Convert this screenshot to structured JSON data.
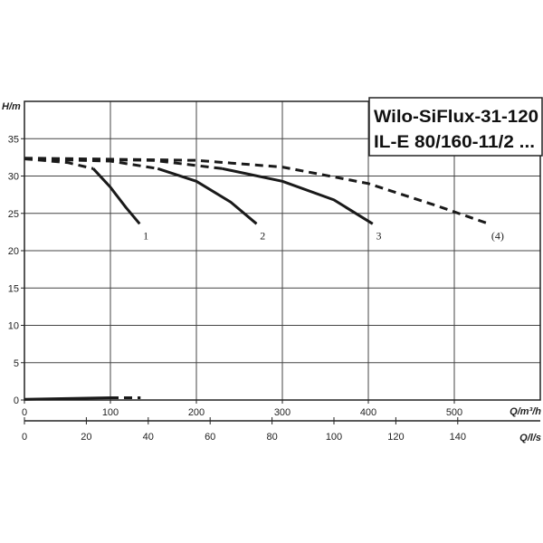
{
  "chart_data": {
    "type": "line",
    "title_lines": [
      "Wilo-SiFlux-31-120",
      "IL-E 80/160-11/2 ..."
    ],
    "ylabel": "H/m",
    "xlabel": "Q/m³/h",
    "x2label": "Q/l/s",
    "xlim": [
      0,
      600
    ],
    "ylim": [
      0,
      40
    ],
    "x2lim": [
      0,
      166.67
    ],
    "y_ticks": [
      0,
      5,
      10,
      15,
      20,
      25,
      30,
      35
    ],
    "x_ticks": [
      0,
      100,
      200,
      300,
      400,
      500
    ],
    "x2_ticks": [
      0,
      20,
      40,
      60,
      80,
      100,
      120,
      140
    ],
    "grid": true,
    "series": [
      {
        "name": "1",
        "style": "dashed",
        "points": [
          [
            0,
            32.3
          ],
          [
            50,
            31.8
          ],
          [
            80,
            31.0
          ]
        ]
      },
      {
        "name": "1",
        "style": "solid",
        "points": [
          [
            80,
            31.0
          ],
          [
            100,
            28.5
          ],
          [
            118,
            25.8
          ],
          [
            134,
            23.6
          ]
        ]
      },
      {
        "name": "2",
        "style": "dashed",
        "points": [
          [
            0,
            32.3
          ],
          [
            100,
            32.0
          ],
          [
            155,
            31.0
          ]
        ]
      },
      {
        "name": "2",
        "style": "solid",
        "points": [
          [
            155,
            31.0
          ],
          [
            200,
            29.3
          ],
          [
            240,
            26.5
          ],
          [
            270,
            23.6
          ]
        ]
      },
      {
        "name": "3",
        "style": "dashed",
        "points": [
          [
            0,
            32.3
          ],
          [
            150,
            32.1
          ],
          [
            230,
            31.0
          ]
        ]
      },
      {
        "name": "3",
        "style": "solid",
        "points": [
          [
            230,
            31.0
          ],
          [
            300,
            29.3
          ],
          [
            360,
            26.8
          ],
          [
            405,
            23.6
          ]
        ]
      },
      {
        "name": "(4)",
        "style": "dashed",
        "points": [
          [
            0,
            32.4
          ],
          [
            200,
            32.1
          ],
          [
            300,
            31.2
          ],
          [
            400,
            29.0
          ],
          [
            480,
            26.0
          ],
          [
            540,
            23.6
          ]
        ]
      },
      {
        "name": "power-solid",
        "style": "solid",
        "points": [
          [
            0,
            0.1
          ],
          [
            100,
            0.3
          ]
        ]
      },
      {
        "name": "power-dashed",
        "style": "dashed",
        "points": [
          [
            100,
            0.3
          ],
          [
            135,
            0.3
          ]
        ]
      }
    ],
    "curve_labels": [
      {
        "text": "1",
        "x": 138,
        "y": 22.0
      },
      {
        "text": "2",
        "x": 274,
        "y": 22.0
      },
      {
        "text": "3",
        "x": 409,
        "y": 22.0
      },
      {
        "text": "(4)",
        "x": 543,
        "y": 22.0
      }
    ]
  }
}
